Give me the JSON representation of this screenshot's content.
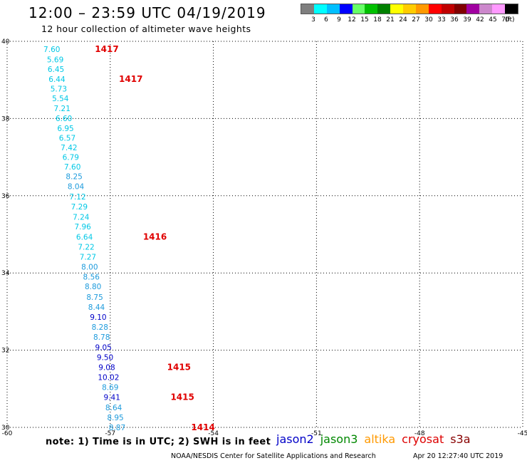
{
  "header": {
    "title": "12:00 – 23:59 UTC 04/19/2019",
    "subtitle": "12 hour collection of altimeter wave heights"
  },
  "legend": {
    "unit": "(ft)",
    "labels": [
      "3",
      "6",
      "9",
      "12",
      "15",
      "18",
      "21",
      "24",
      "27",
      "30",
      "33",
      "36",
      "39",
      "42",
      "45",
      "70"
    ],
    "colors": [
      "#7f7f7f",
      "#00ffff",
      "#00bfff",
      "#0000ff",
      "#66ff66",
      "#00c000",
      "#008000",
      "#ffff00",
      "#ffcc00",
      "#ff9900",
      "#ff0000",
      "#c00000",
      "#800000",
      "#a000a0",
      "#cc88cc",
      "#ff99ff",
      "#000000"
    ]
  },
  "note": "note: 1) Time is in UTC; 2) SWH is in feet",
  "satellites": [
    {
      "name": "jason2",
      "color": "#0000c8"
    },
    {
      "name": "jason3",
      "color": "#008800"
    },
    {
      "name": "altika",
      "color": "#ff9900"
    },
    {
      "name": "cryosat",
      "color": "#dd0000"
    },
    {
      "name": "s3a",
      "color": "#880000"
    }
  ],
  "footer": {
    "credit": "NOAA/NESDIS Center for Satellite Applications and Research",
    "timestamp": "Apr 20 12:27:40 UTC 2019"
  },
  "chart_data": {
    "type": "scatter",
    "title": "12:00 – 23:59 UTC 04/19/2019",
    "subtitle": "12 hour collection of altimeter wave heights",
    "xlim": [
      -60,
      -45
    ],
    "ylim": [
      30,
      40
    ],
    "x_ticks": [
      "-60",
      "-57",
      "-54",
      "-51",
      "-48",
      "-45"
    ],
    "y_ticks": [
      "30",
      "32",
      "34",
      "36",
      "38",
      "40"
    ],
    "grid": true,
    "value_colors": {
      "cyan": "#00c8e6",
      "lightblue": "#1e9bdc",
      "blue": "#0000c8"
    },
    "points": [
      {
        "lon": -58.7,
        "lat": 39.8,
        "label": "7.60",
        "c": "cyan"
      },
      {
        "lon": -58.6,
        "lat": 39.53,
        "label": "5.69",
        "c": "cyan"
      },
      {
        "lon": -58.58,
        "lat": 39.28,
        "label": "6.45",
        "c": "cyan"
      },
      {
        "lon": -58.55,
        "lat": 39.02,
        "label": "6.44",
        "c": "cyan"
      },
      {
        "lon": -58.5,
        "lat": 38.77,
        "label": "5.73",
        "c": "cyan"
      },
      {
        "lon": -58.45,
        "lat": 38.52,
        "label": "5.54",
        "c": "cyan"
      },
      {
        "lon": -58.4,
        "lat": 38.27,
        "label": "7.21",
        "c": "cyan"
      },
      {
        "lon": -58.35,
        "lat": 38.01,
        "label": "6.60",
        "c": "cyan"
      },
      {
        "lon": -58.3,
        "lat": 37.75,
        "label": "6.95",
        "c": "cyan"
      },
      {
        "lon": -58.25,
        "lat": 37.5,
        "label": "6.57",
        "c": "cyan"
      },
      {
        "lon": -58.2,
        "lat": 37.25,
        "label": "7.42",
        "c": "cyan"
      },
      {
        "lon": -58.15,
        "lat": 37.0,
        "label": "6.79",
        "c": "cyan"
      },
      {
        "lon": -58.1,
        "lat": 36.75,
        "label": "7.60",
        "c": "cyan"
      },
      {
        "lon": -58.05,
        "lat": 36.5,
        "label": "8.25",
        "c": "lightblue"
      },
      {
        "lon": -58.0,
        "lat": 36.25,
        "label": "8.04",
        "c": "lightblue"
      },
      {
        "lon": -57.95,
        "lat": 35.98,
        "label": "7.12",
        "c": "cyan"
      },
      {
        "lon": -57.9,
        "lat": 35.72,
        "label": "7.29",
        "c": "cyan"
      },
      {
        "lon": -57.85,
        "lat": 35.45,
        "label": "7.24",
        "c": "cyan"
      },
      {
        "lon": -57.8,
        "lat": 35.2,
        "label": "7.96",
        "c": "cyan"
      },
      {
        "lon": -57.75,
        "lat": 34.94,
        "label": "6.64",
        "c": "cyan"
      },
      {
        "lon": -57.7,
        "lat": 34.68,
        "label": "7.22",
        "c": "cyan"
      },
      {
        "lon": -57.65,
        "lat": 34.42,
        "label": "7.27",
        "c": "cyan"
      },
      {
        "lon": -57.6,
        "lat": 34.16,
        "label": "8.00",
        "c": "lightblue"
      },
      {
        "lon": -57.55,
        "lat": 33.9,
        "label": "8.56",
        "c": "lightblue"
      },
      {
        "lon": -57.5,
        "lat": 33.65,
        "label": "8.80",
        "c": "lightblue"
      },
      {
        "lon": -57.45,
        "lat": 33.38,
        "label": "8.75",
        "c": "lightblue"
      },
      {
        "lon": -57.4,
        "lat": 33.12,
        "label": "8.44",
        "c": "lightblue"
      },
      {
        "lon": -57.35,
        "lat": 32.86,
        "label": "9.10",
        "c": "blue"
      },
      {
        "lon": -57.3,
        "lat": 32.6,
        "label": "8.28",
        "c": "lightblue"
      },
      {
        "lon": -57.25,
        "lat": 32.34,
        "label": "8.78",
        "c": "lightblue"
      },
      {
        "lon": -57.2,
        "lat": 32.08,
        "label": "9.05",
        "c": "blue"
      },
      {
        "lon": -57.15,
        "lat": 31.82,
        "label": "9.50",
        "c": "blue"
      },
      {
        "lon": -57.1,
        "lat": 31.56,
        "label": "9.08",
        "c": "blue"
      },
      {
        "lon": -57.05,
        "lat": 31.3,
        "label": "10.02",
        "c": "blue"
      },
      {
        "lon": -57.0,
        "lat": 31.04,
        "label": "8.69",
        "c": "lightblue"
      },
      {
        "lon": -56.95,
        "lat": 30.78,
        "label": "9.41",
        "c": "blue"
      },
      {
        "lon": -56.9,
        "lat": 30.52,
        "label": "8.64",
        "c": "lightblue"
      },
      {
        "lon": -56.85,
        "lat": 30.26,
        "label": "8.95",
        "c": "lightblue"
      },
      {
        "lon": -56.8,
        "lat": 30.0,
        "label": "8.87",
        "c": "lightblue"
      }
    ],
    "times": [
      {
        "lon": -57.1,
        "lat": 39.8,
        "label": "1417"
      },
      {
        "lon": -56.4,
        "lat": 39.02,
        "label": "1417"
      },
      {
        "lon": -55.7,
        "lat": 34.94,
        "label": "1416"
      },
      {
        "lon": -55.0,
        "lat": 31.56,
        "label": "1415"
      },
      {
        "lon": -54.9,
        "lat": 30.78,
        "label": "1415"
      },
      {
        "lon": -54.3,
        "lat": 30.0,
        "label": "1414"
      }
    ]
  }
}
